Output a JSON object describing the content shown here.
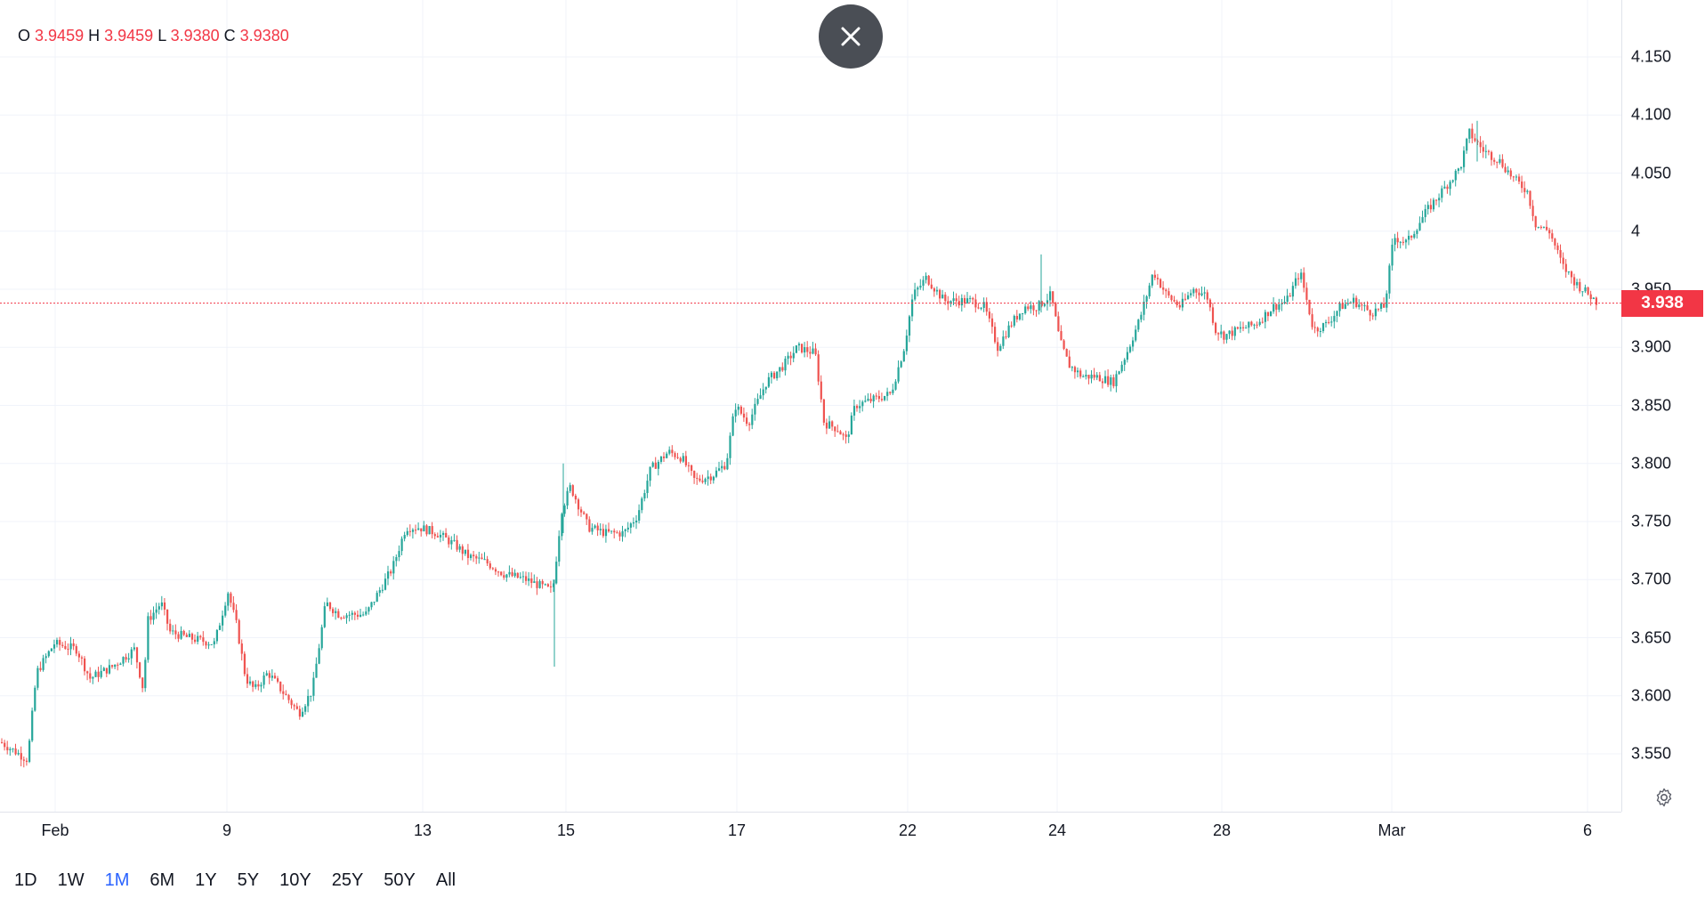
{
  "ohlc": {
    "o_label": "O",
    "o_value": "3.9459",
    "h_label": "H",
    "h_value": "3.9459",
    "l_label": "L",
    "l_value": "3.9380",
    "c_label": "C",
    "c_value": "3.9380"
  },
  "last_price_label": "3.938",
  "range_buttons": [
    "1D",
    "1W",
    "1M",
    "6M",
    "1Y",
    "5Y",
    "10Y",
    "25Y",
    "50Y",
    "All"
  ],
  "active_range": "1M",
  "colors": {
    "up": "#26a69a",
    "down": "#ef5350",
    "active": "#2962ff",
    "grid": "#f0f3fa",
    "price_line": "#f23645"
  },
  "icons": {
    "close": "close-icon",
    "settings": "gear-icon"
  },
  "chart_data": {
    "type": "candlestick",
    "y_ticks": [
      "3.550",
      "3.600",
      "3.650",
      "3.700",
      "3.750",
      "3.800",
      "3.850",
      "3.900",
      "3.950",
      "4",
      "4.050",
      "4.100",
      "4.150"
    ],
    "ylim": [
      3.51,
      4.19
    ],
    "x_ticks": [
      "Feb",
      "9",
      "13",
      "15",
      "17",
      "22",
      "24",
      "28",
      "Mar",
      "6"
    ],
    "last_price": 3.938,
    "series": [
      {
        "path": [
          [
            0,
            3.56
          ],
          [
            30,
            3.545
          ],
          [
            40,
            3.62
          ],
          [
            60,
            3.645
          ],
          [
            85,
            3.64
          ],
          [
            100,
            3.615
          ],
          [
            125,
            3.625
          ],
          [
            150,
            3.64
          ],
          [
            160,
            3.605
          ],
          [
            165,
            3.665
          ],
          [
            180,
            3.68
          ],
          [
            190,
            3.655
          ],
          [
            210,
            3.65
          ],
          [
            240,
            3.645
          ],
          [
            255,
            3.69
          ],
          [
            265,
            3.66
          ],
          [
            275,
            3.615
          ],
          [
            285,
            3.605
          ],
          [
            300,
            3.62
          ],
          [
            320,
            3.6
          ],
          [
            335,
            3.585
          ],
          [
            350,
            3.605
          ],
          [
            365,
            3.68
          ],
          [
            380,
            3.67
          ],
          [
            395,
            3.67
          ],
          [
            410,
            3.67
          ],
          [
            425,
            3.69
          ],
          [
            440,
            3.71
          ],
          [
            455,
            3.745
          ],
          [
            470,
            3.745
          ],
          [
            490,
            3.74
          ],
          [
            510,
            3.73
          ],
          [
            525,
            3.72
          ],
          [
            545,
            3.715
          ],
          [
            565,
            3.705
          ],
          [
            590,
            3.7
          ],
          [
            605,
            3.695
          ],
          [
            620,
            3.69
          ],
          [
            630,
            3.76
          ],
          [
            640,
            3.78
          ],
          [
            660,
            3.745
          ],
          [
            680,
            3.74
          ],
          [
            700,
            3.74
          ],
          [
            715,
            3.755
          ],
          [
            730,
            3.795
          ],
          [
            750,
            3.81
          ],
          [
            765,
            3.805
          ],
          [
            780,
            3.785
          ],
          [
            800,
            3.79
          ],
          [
            815,
            3.8
          ],
          [
            825,
            3.85
          ],
          [
            840,
            3.835
          ],
          [
            860,
            3.87
          ],
          [
            880,
            3.885
          ],
          [
            895,
            3.9
          ],
          [
            915,
            3.895
          ],
          [
            925,
            3.835
          ],
          [
            940,
            3.83
          ],
          [
            950,
            3.82
          ],
          [
            960,
            3.85
          ],
          [
            980,
            3.855
          ],
          [
            1000,
            3.86
          ],
          [
            1015,
            3.9
          ],
          [
            1025,
            3.945
          ],
          [
            1040,
            3.96
          ],
          [
            1060,
            3.94
          ],
          [
            1075,
            3.94
          ],
          [
            1090,
            3.94
          ],
          [
            1105,
            3.935
          ],
          [
            1120,
            3.9
          ],
          [
            1135,
            3.92
          ],
          [
            1150,
            3.935
          ],
          [
            1165,
            3.935
          ],
          [
            1180,
            3.945
          ],
          [
            1190,
            3.905
          ],
          [
            1200,
            3.885
          ],
          [
            1215,
            3.875
          ],
          [
            1230,
            3.875
          ],
          [
            1250,
            3.87
          ],
          [
            1265,
            3.895
          ],
          [
            1280,
            3.925
          ],
          [
            1295,
            3.965
          ],
          [
            1310,
            3.945
          ],
          [
            1325,
            3.935
          ],
          [
            1340,
            3.95
          ],
          [
            1355,
            3.945
          ],
          [
            1365,
            3.915
          ],
          [
            1375,
            3.91
          ],
          [
            1390,
            3.915
          ],
          [
            1410,
            3.92
          ],
          [
            1430,
            3.935
          ],
          [
            1445,
            3.94
          ],
          [
            1460,
            3.965
          ],
          [
            1475,
            3.915
          ],
          [
            1490,
            3.92
          ],
          [
            1505,
            3.935
          ],
          [
            1520,
            3.94
          ],
          [
            1540,
            3.93
          ],
          [
            1555,
            3.935
          ],
          [
            1565,
            3.995
          ],
          [
            1580,
            3.99
          ],
          [
            1600,
            4.015
          ],
          [
            1620,
            4.035
          ],
          [
            1640,
            4.055
          ],
          [
            1650,
            4.085
          ],
          [
            1665,
            4.07
          ],
          [
            1685,
            4.06
          ],
          [
            1700,
            4.045
          ],
          [
            1715,
            4.035
          ],
          [
            1725,
            4.005
          ],
          [
            1740,
            4.0
          ],
          [
            1755,
            3.97
          ],
          [
            1770,
            3.955
          ],
          [
            1785,
            3.945
          ],
          [
            1795,
            3.938
          ]
        ]
      }
    ]
  }
}
